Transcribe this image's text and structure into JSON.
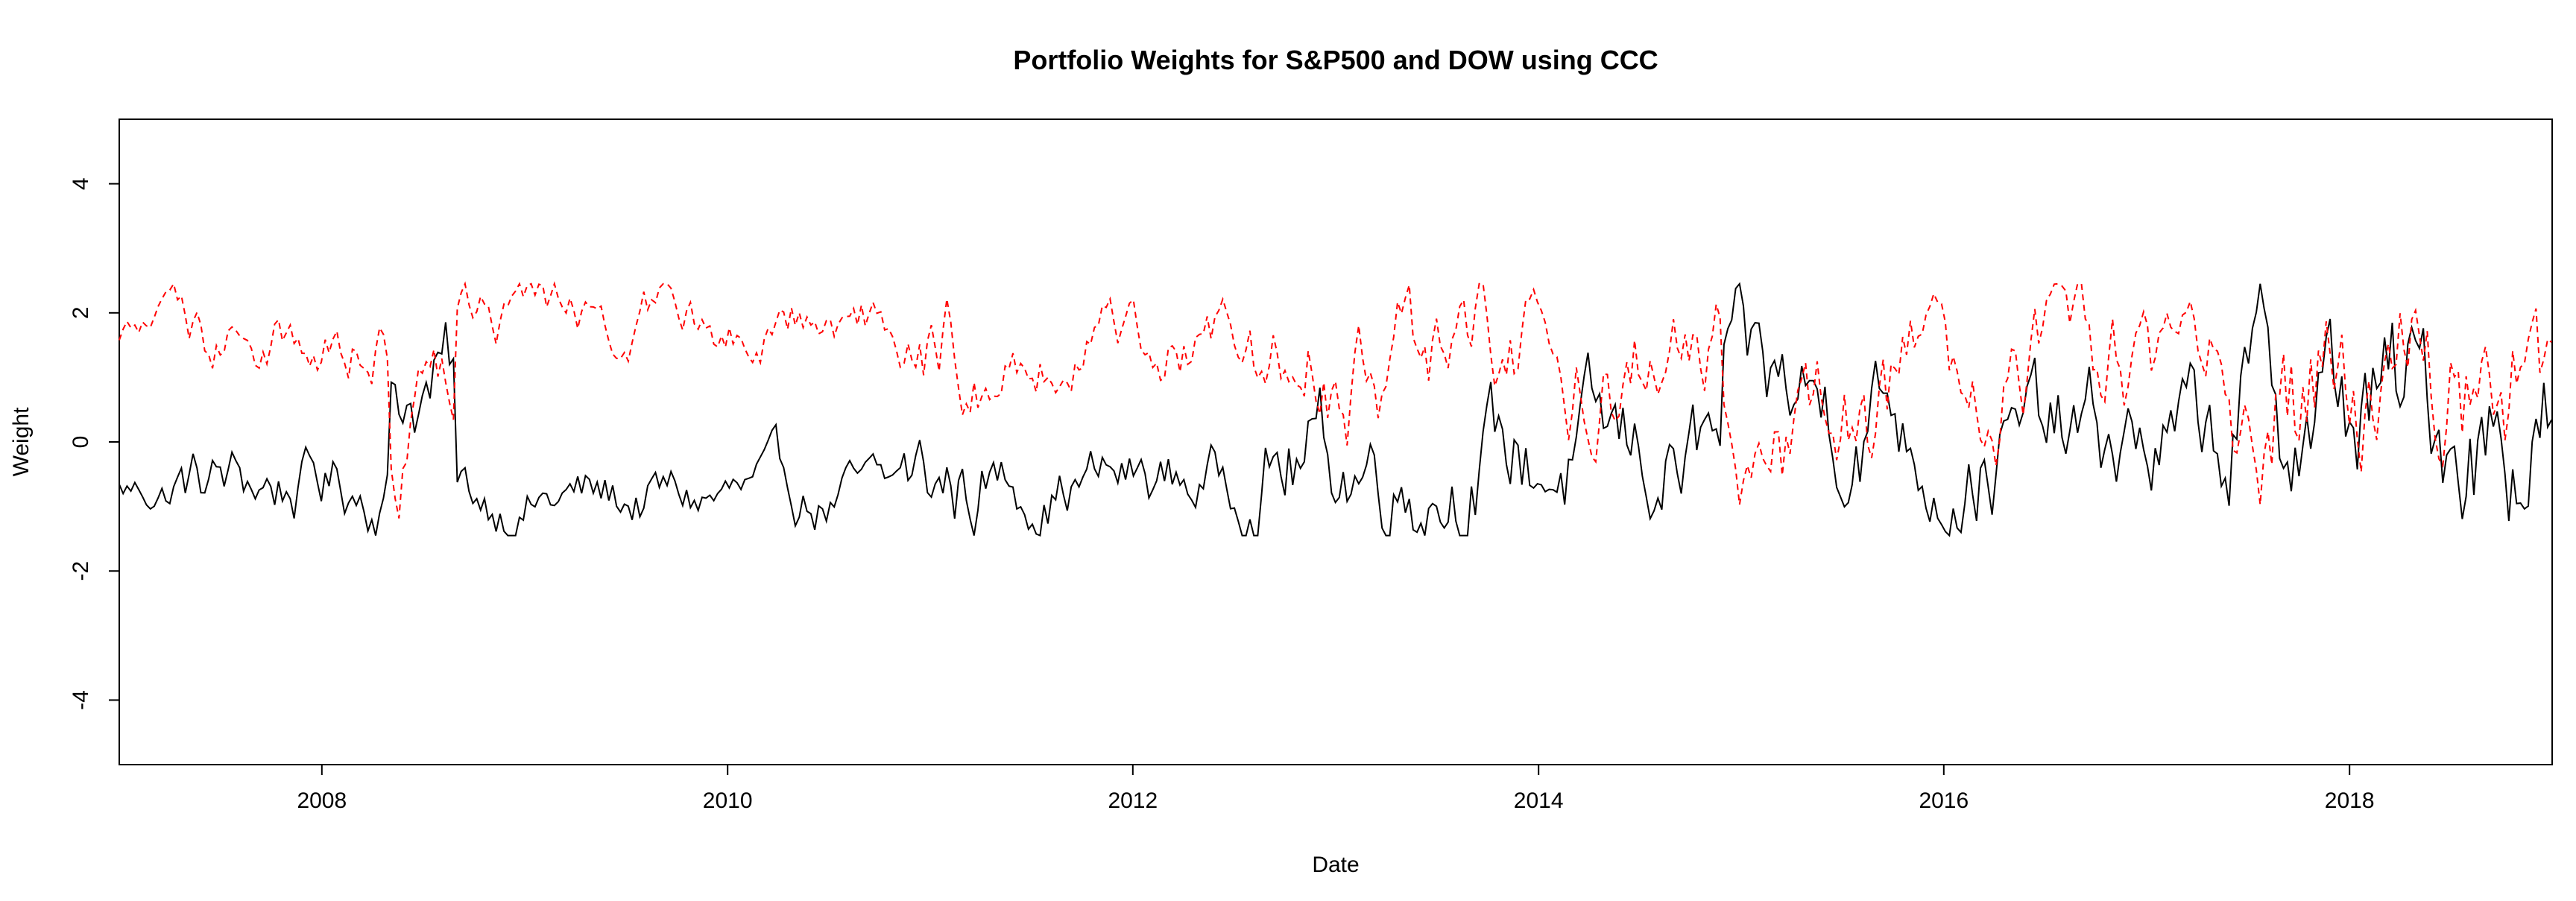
{
  "chart_data": {
    "type": "line",
    "title": "Portfolio Weights for S&P500 and DOW using CCC",
    "xlabel": "Date",
    "ylabel": "Weight",
    "xlim": [
      "2007-01-01",
      "2019-01-01"
    ],
    "ylim": [
      -5,
      5
    ],
    "x_ticks": [
      "2008",
      "2010",
      "2012",
      "2014",
      "2016",
      "2018"
    ],
    "y_ticks": [
      "-4",
      "-2",
      "0",
      "2",
      "4"
    ],
    "grid": false,
    "legend": "none",
    "frequency": "weekly",
    "series": [
      {
        "color": "#000000",
        "line_style": "solid",
        "regimes": [
          {
            "start": "2007-01-01",
            "end": "2007-04-01",
            "mean": -0.75,
            "amp": 0.3
          },
          {
            "start": "2007-04-01",
            "end": "2008-05-01",
            "mean": -0.65,
            "amp": 0.55
          },
          {
            "start": "2008-05-01",
            "end": "2008-09-01",
            "mean": 0.9,
            "amp": 0.8
          },
          {
            "start": "2008-09-01",
            "end": "2010-11-01",
            "mean": -0.9,
            "amp": 0.45
          },
          {
            "start": "2010-11-01",
            "end": "2011-04-01",
            "mean": -0.7,
            "amp": 0.8
          },
          {
            "start": "2011-04-01",
            "end": "2012-08-01",
            "mean": -0.6,
            "amp": 0.5
          },
          {
            "start": "2012-08-01",
            "end": "2014-12-01",
            "mean": -0.3,
            "amp": 0.9
          },
          {
            "start": "2014-12-01",
            "end": "2015-11-01",
            "mean": 0.6,
            "amp": 1.0
          },
          {
            "start": "2015-11-01",
            "end": "2017-06-01",
            "mean": -0.1,
            "amp": 0.9
          },
          {
            "start": "2017-06-01",
            "end": "2019-01-01",
            "mean": 0.4,
            "amp": 1.3
          }
        ]
      },
      {
        "color": "#ff0000",
        "line_style": "dashed",
        "regimes": [
          {
            "start": "2007-01-01",
            "end": "2007-04-01",
            "mean": 1.75,
            "amp": 0.3
          },
          {
            "start": "2007-04-01",
            "end": "2008-05-01",
            "mean": 1.65,
            "amp": 0.55
          },
          {
            "start": "2008-05-01",
            "end": "2008-09-01",
            "mean": 0.1,
            "amp": 0.8
          },
          {
            "start": "2008-09-01",
            "end": "2010-11-01",
            "mean": 1.9,
            "amp": 0.45
          },
          {
            "start": "2010-11-01",
            "end": "2011-04-01",
            "mean": 1.7,
            "amp": 0.8
          },
          {
            "start": "2011-04-01",
            "end": "2012-08-01",
            "mean": 1.6,
            "amp": 0.5
          },
          {
            "start": "2012-08-01",
            "end": "2014-12-01",
            "mean": 1.3,
            "amp": 0.9
          },
          {
            "start": "2014-12-01",
            "end": "2015-11-01",
            "mean": 0.4,
            "amp": 1.0
          },
          {
            "start": "2015-11-01",
            "end": "2017-06-01",
            "mean": 1.1,
            "amp": 0.9
          },
          {
            "start": "2017-06-01",
            "end": "2019-01-01",
            "mean": 0.6,
            "amp": 1.3
          }
        ]
      }
    ]
  }
}
